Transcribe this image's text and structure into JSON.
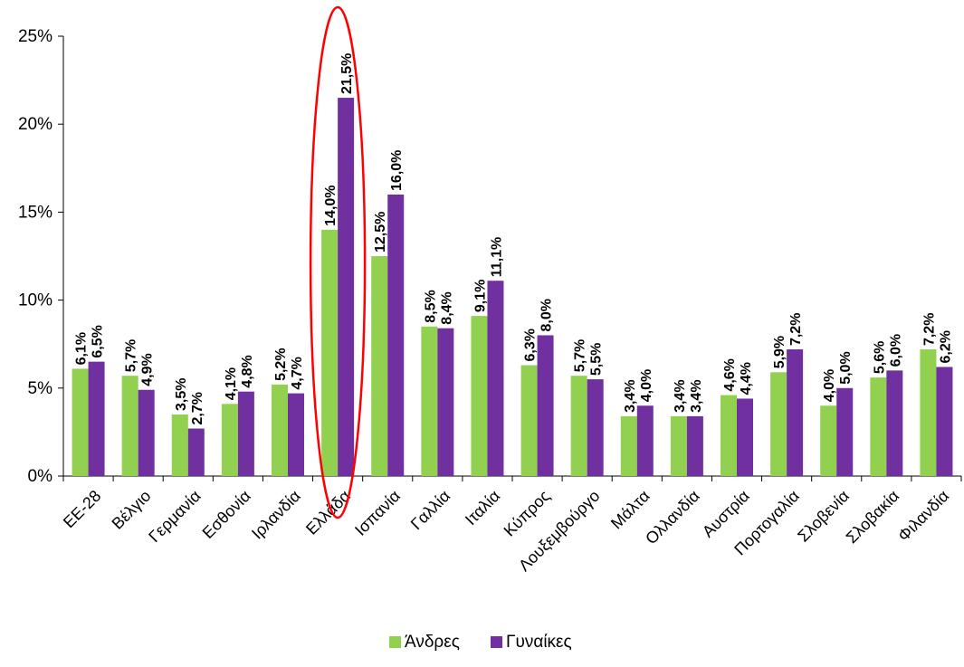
{
  "chart_data": {
    "type": "bar",
    "categories": [
      "ΕΕ-28",
      "Βέλγιο",
      "Γερμανία",
      "Εσθονία",
      "Ιρλανδία",
      "Ελλάδα",
      "Ισπανία",
      "Γαλλία",
      "Ιταλία",
      "Κύπρος",
      "Λουξεμβούργο",
      "Μάλτα",
      "Ολλανδία",
      "Αυστρία",
      "Πορτογαλία",
      "Σλοβενία",
      "Σλοβακία",
      "Φιλανδία"
    ],
    "series": [
      {
        "name": "Άνδρες",
        "color": "#92d050",
        "values": [
          6.1,
          5.7,
          3.5,
          4.1,
          5.2,
          14.0,
          12.5,
          8.5,
          9.1,
          6.3,
          5.7,
          3.4,
          3.4,
          4.6,
          5.9,
          4.0,
          5.6,
          7.2
        ],
        "labels": [
          "6,1%",
          "5,7%",
          "3,5%",
          "4,1%",
          "5,2%",
          "14,0%",
          "12,5%",
          "8,5%",
          "9,1%",
          "6,3%",
          "5,7%",
          "3,4%",
          "3,4%",
          "4,6%",
          "5,9%",
          "4,0%",
          "5,6%",
          "7,2%"
        ]
      },
      {
        "name": "Γυναίκες",
        "color": "#7030a0",
        "values": [
          6.5,
          4.9,
          2.7,
          4.8,
          4.7,
          21.5,
          16.0,
          8.4,
          11.1,
          8.0,
          5.5,
          4.0,
          3.4,
          4.4,
          7.2,
          5.0,
          6.0,
          6.2
        ],
        "labels": [
          "6,5%",
          "4,9%",
          "2,7%",
          "4,8%",
          "4,7%",
          "21,5%",
          "16,0%",
          "8,4%",
          "11,1%",
          "8,0%",
          "5,5%",
          "4,0%",
          "3,4%",
          "4,4%",
          "7,2%",
          "5,0%",
          "6,0%",
          "6,2%"
        ]
      }
    ],
    "yticks": [
      "0%",
      "5%",
      "10%",
      "15%",
      "20%",
      "25%"
    ],
    "ylim": [
      0,
      25
    ],
    "grid": false,
    "legend_position": "bottom",
    "highlight": {
      "category": "Ελλάδα",
      "shape": "ellipse",
      "color": "#ff0000"
    }
  }
}
